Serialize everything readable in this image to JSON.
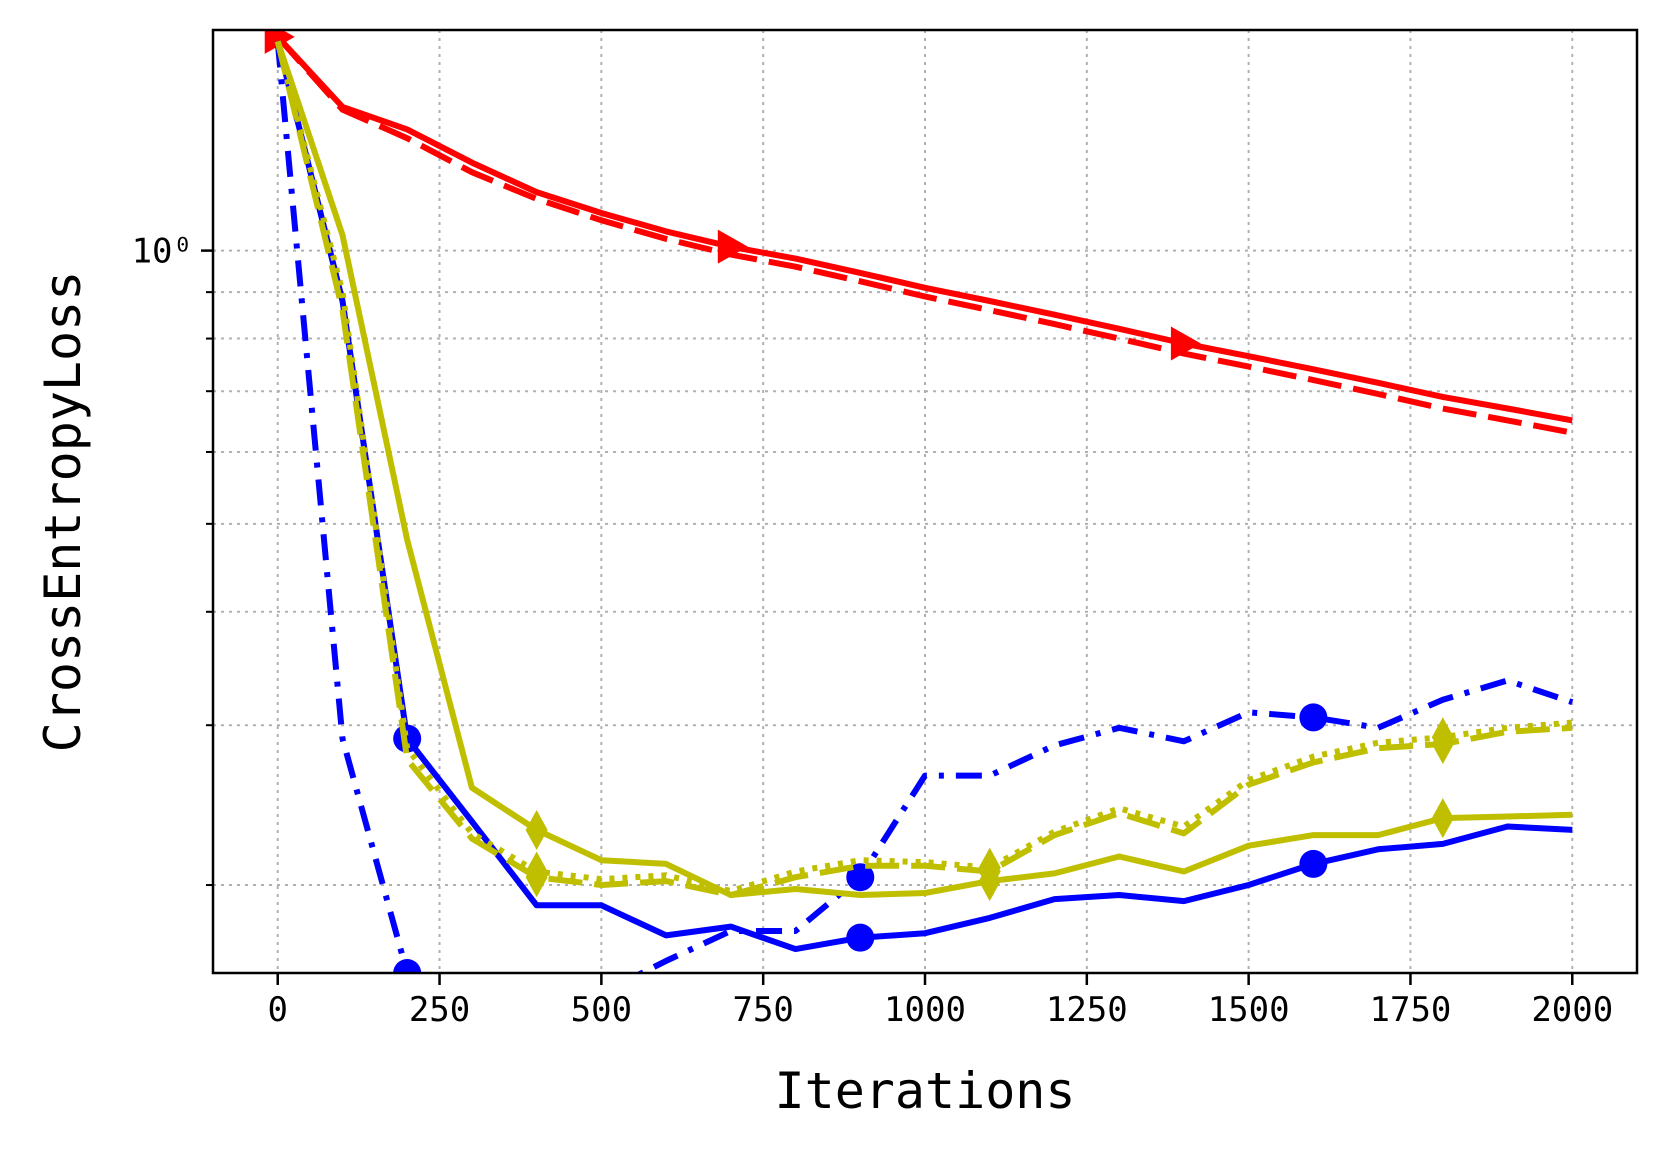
{
  "chart_data": {
    "type": "line",
    "title": "",
    "xlabel": "Iterations",
    "ylabel": "CrossEntropyLoss",
    "xlim": [
      -100,
      2100
    ],
    "ylim": [
      0.16,
      1.75
    ],
    "yscale": "log",
    "grid": true,
    "x_ticks": [
      0,
      250,
      500,
      750,
      1000,
      1250,
      1500,
      1750,
      2000
    ],
    "x_tick_labels": [
      "0",
      "250",
      "500",
      "750",
      "1000",
      "1250",
      "1500",
      "1750",
      "2000"
    ],
    "y_major_ticks": [
      1.0
    ],
    "y_major_tick_labels": [
      "10⁰"
    ],
    "y_minor_ticks": [
      0.2,
      0.3,
      0.4,
      0.5,
      0.6,
      0.7,
      0.8,
      0.9,
      2.0
    ],
    "x": [
      0,
      100,
      200,
      300,
      400,
      500,
      600,
      700,
      800,
      900,
      1000,
      1100,
      1200,
      1300,
      1400,
      1500,
      1600,
      1700,
      1800,
      1900,
      2000
    ],
    "series": [
      {
        "color": "#ff0000",
        "style": "solid",
        "marker": "triangle-right",
        "marker_every": [
          0,
          7,
          14
        ],
        "values": [
          1.72,
          1.44,
          1.36,
          1.25,
          1.16,
          1.1,
          1.05,
          1.01,
          0.98,
          0.945,
          0.91,
          0.88,
          0.85,
          0.82,
          0.79,
          0.765,
          0.74,
          0.715,
          0.69,
          0.67,
          0.65
        ]
      },
      {
        "color": "#ff0000",
        "style": "dashed",
        "marker": "none",
        "marker_every": [],
        "values": [
          1.72,
          1.43,
          1.33,
          1.22,
          1.14,
          1.08,
          1.03,
          0.99,
          0.96,
          0.925,
          0.89,
          0.86,
          0.83,
          0.8,
          0.77,
          0.745,
          0.72,
          0.695,
          0.67,
          0.65,
          0.63
        ]
      },
      {
        "color": "#0000ff",
        "style": "solid",
        "marker": "circle",
        "marker_every": [
          2,
          9,
          16
        ],
        "values": [
          1.7,
          0.88,
          0.29,
          0.235,
          0.19,
          0.19,
          0.176,
          0.18,
          0.17,
          0.175,
          0.177,
          0.184,
          0.193,
          0.195,
          0.192,
          0.2,
          0.211,
          0.219,
          0.222,
          0.232,
          0.23
        ]
      },
      {
        "color": "#0000ff",
        "style": "dashdot",
        "marker": "circle",
        "marker_every": [
          2,
          9,
          16
        ],
        "values": [
          1.7,
          0.29,
          0.16,
          0.151,
          0.142,
          0.152,
          0.165,
          0.178,
          0.178,
          0.204,
          0.264,
          0.264,
          0.285,
          0.298,
          0.288,
          0.31,
          0.306,
          0.298,
          0.32,
          0.336,
          0.318
        ]
      },
      {
        "color": "#bfbf00",
        "style": "solid",
        "marker": "thin-diamond",
        "marker_every": [
          4,
          11,
          18
        ],
        "values": [
          1.7,
          1.04,
          0.48,
          0.256,
          0.23,
          0.213,
          0.211,
          0.195,
          0.198,
          0.195,
          0.196,
          0.202,
          0.206,
          0.215,
          0.207,
          0.221,
          0.227,
          0.227,
          0.237,
          0.238,
          0.239
        ]
      },
      {
        "color": "#bfbf00",
        "style": "dashed",
        "marker": "thin-diamond",
        "marker_every": [
          4,
          11,
          18
        ],
        "values": [
          1.7,
          0.86,
          0.275,
          0.225,
          0.204,
          0.2,
          0.202,
          0.195,
          0.204,
          0.21,
          0.21,
          0.207,
          0.227,
          0.24,
          0.228,
          0.258,
          0.273,
          0.283,
          0.286,
          0.295,
          0.298
        ]
      },
      {
        "color": "#bfbf00",
        "style": "dotted",
        "marker": "thin-diamond",
        "marker_every": [
          4,
          11,
          18
        ],
        "values": [
          1.7,
          0.9,
          0.283,
          0.228,
          0.207,
          0.203,
          0.205,
          0.197,
          0.207,
          0.213,
          0.212,
          0.209,
          0.229,
          0.243,
          0.232,
          0.261,
          0.277,
          0.287,
          0.291,
          0.298,
          0.302
        ]
      }
    ]
  }
}
